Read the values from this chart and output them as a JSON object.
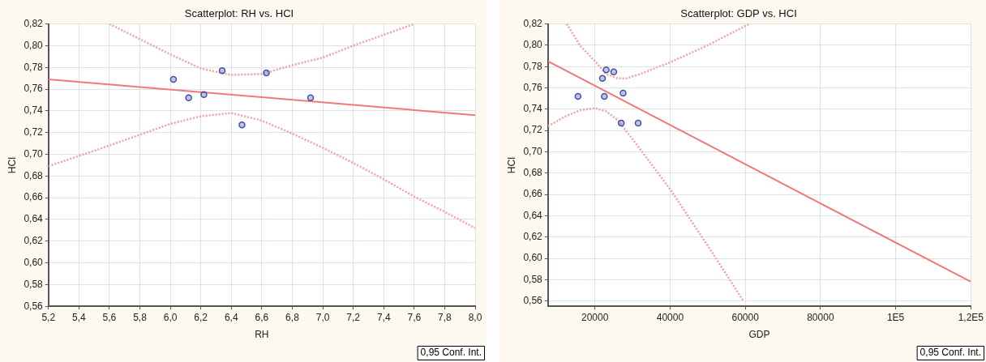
{
  "chart_data": [
    {
      "type": "scatter",
      "title": "Scatterplot: RH vs. HCI",
      "xlabel": "RH",
      "ylabel": "HCI",
      "xlim": [
        5.2,
        8.0
      ],
      "ylim": [
        0.56,
        0.82
      ],
      "xticks": [
        {
          "value": 5.2,
          "label": "5,2"
        },
        {
          "value": 5.4,
          "label": "5,4"
        },
        {
          "value": 5.6,
          "label": "5,6"
        },
        {
          "value": 5.8,
          "label": "5,8"
        },
        {
          "value": 6.0,
          "label": "6,0"
        },
        {
          "value": 6.2,
          "label": "6,2"
        },
        {
          "value": 6.4,
          "label": "6,4"
        },
        {
          "value": 6.6,
          "label": "6,6"
        },
        {
          "value": 6.8,
          "label": "6,8"
        },
        {
          "value": 7.0,
          "label": "7,0"
        },
        {
          "value": 7.2,
          "label": "7,2"
        },
        {
          "value": 7.4,
          "label": "7,4"
        },
        {
          "value": 7.6,
          "label": "7,6"
        },
        {
          "value": 7.8,
          "label": "7,8"
        },
        {
          "value": 8.0,
          "label": "8,0"
        }
      ],
      "yticks": [
        {
          "value": 0.56,
          "label": "0,56"
        },
        {
          "value": 0.58,
          "label": "0,58"
        },
        {
          "value": 0.6,
          "label": "0,60"
        },
        {
          "value": 0.62,
          "label": "0,62"
        },
        {
          "value": 0.64,
          "label": "0,64"
        },
        {
          "value": 0.66,
          "label": "0,66"
        },
        {
          "value": 0.68,
          "label": "0,68"
        },
        {
          "value": 0.7,
          "label": "0,70"
        },
        {
          "value": 0.72,
          "label": "0,72"
        },
        {
          "value": 0.74,
          "label": "0,74"
        },
        {
          "value": 0.76,
          "label": "0,76"
        },
        {
          "value": 0.78,
          "label": "0,78"
        },
        {
          "value": 0.8,
          "label": "0,80"
        },
        {
          "value": 0.82,
          "label": "0,82"
        }
      ],
      "grid": true,
      "legend": false,
      "annotations": [
        "0,95 Conf. Int."
      ],
      "series": [
        {
          "type": "scatter",
          "marker": "circle",
          "color": "#4050a8",
          "x": [
            6.02,
            6.12,
            6.22,
            6.34,
            6.47,
            6.63,
            6.92
          ],
          "values": [
            0.769,
            0.752,
            0.755,
            0.777,
            0.727,
            0.775,
            0.752
          ]
        },
        {
          "type": "line",
          "color": "#f07878",
          "line_style": "solid",
          "x": [
            5.2,
            8.0
          ],
          "values": [
            0.769,
            0.736
          ]
        },
        {
          "type": "line",
          "color": "#f4a0a0",
          "line_style": "dotted",
          "x": [
            5.6,
            6.0,
            6.2,
            6.4,
            6.6,
            6.8,
            7.0,
            7.2,
            7.4,
            7.6
          ],
          "values": [
            0.82,
            0.792,
            0.779,
            0.773,
            0.774,
            0.782,
            0.789,
            0.8,
            0.81,
            0.82
          ]
        },
        {
          "type": "line",
          "color": "#f4a0a0",
          "line_style": "dotted",
          "x": [
            5.2,
            5.6,
            6.0,
            6.2,
            6.4,
            6.6,
            6.8,
            7.0,
            7.2,
            7.4,
            7.6,
            7.8,
            8.0
          ],
          "values": [
            0.689,
            0.708,
            0.728,
            0.735,
            0.738,
            0.731,
            0.719,
            0.706,
            0.692,
            0.677,
            0.661,
            0.647,
            0.632
          ]
        }
      ]
    },
    {
      "type": "scatter",
      "title": "Scatterplot: GDP vs. HCI",
      "xlabel": "GDP",
      "ylabel": "HCI",
      "xlim": [
        7500,
        120000
      ],
      "ylim": [
        0.555,
        0.82
      ],
      "xticks": [
        20000,
        40000,
        60000,
        80000,
        {
          "value": 100000,
          "label": "1E5"
        },
        {
          "value": 120000,
          "label": "1,2E5"
        }
      ],
      "yticks": [
        {
          "value": 0.56,
          "label": "0,56"
        },
        {
          "value": 0.58,
          "label": "0,58"
        },
        {
          "value": 0.6,
          "label": "0,60"
        },
        {
          "value": 0.62,
          "label": "0,62"
        },
        {
          "value": 0.64,
          "label": "0,64"
        },
        {
          "value": 0.66,
          "label": "0,66"
        },
        {
          "value": 0.68,
          "label": "0,68"
        },
        {
          "value": 0.7,
          "label": "0,70"
        },
        {
          "value": 0.72,
          "label": "0,72"
        },
        {
          "value": 0.74,
          "label": "0,74"
        },
        {
          "value": 0.76,
          "label": "0,76"
        },
        {
          "value": 0.78,
          "label": "0,78"
        },
        {
          "value": 0.8,
          "label": "0,80"
        },
        {
          "value": 0.82,
          "label": "0,82"
        }
      ],
      "grid": true,
      "legend": false,
      "annotations": [
        "0,95 Conf. Int."
      ],
      "series": [
        {
          "type": "scatter",
          "marker": "circle",
          "color": "#4050a8",
          "x": [
            15500,
            22000,
            23000,
            22500,
            25000,
            27500,
            27000,
            31500
          ],
          "values": [
            0.752,
            0.769,
            0.777,
            0.752,
            0.775,
            0.755,
            0.727,
            0.727
          ]
        },
        {
          "type": "line",
          "color": "#f07878",
          "line_style": "solid",
          "x": [
            7500,
            120000
          ],
          "values": [
            0.785,
            0.578
          ]
        },
        {
          "type": "line",
          "color": "#f4a0a0",
          "line_style": "dotted",
          "x": [
            12500,
            16000,
            20000,
            23000,
            26000,
            28500,
            32000,
            40000,
            50000,
            61000
          ],
          "values": [
            0.82,
            0.8,
            0.785,
            0.773,
            0.769,
            0.769,
            0.773,
            0.784,
            0.8,
            0.82
          ]
        },
        {
          "type": "line",
          "color": "#f4a0a0",
          "line_style": "dotted",
          "x": [
            7500,
            12000,
            16000,
            20000,
            23000,
            26000,
            30000,
            40000,
            50000,
            59500
          ],
          "values": [
            0.724,
            0.733,
            0.739,
            0.741,
            0.738,
            0.73,
            0.712,
            0.665,
            0.612,
            0.56
          ]
        }
      ]
    }
  ]
}
